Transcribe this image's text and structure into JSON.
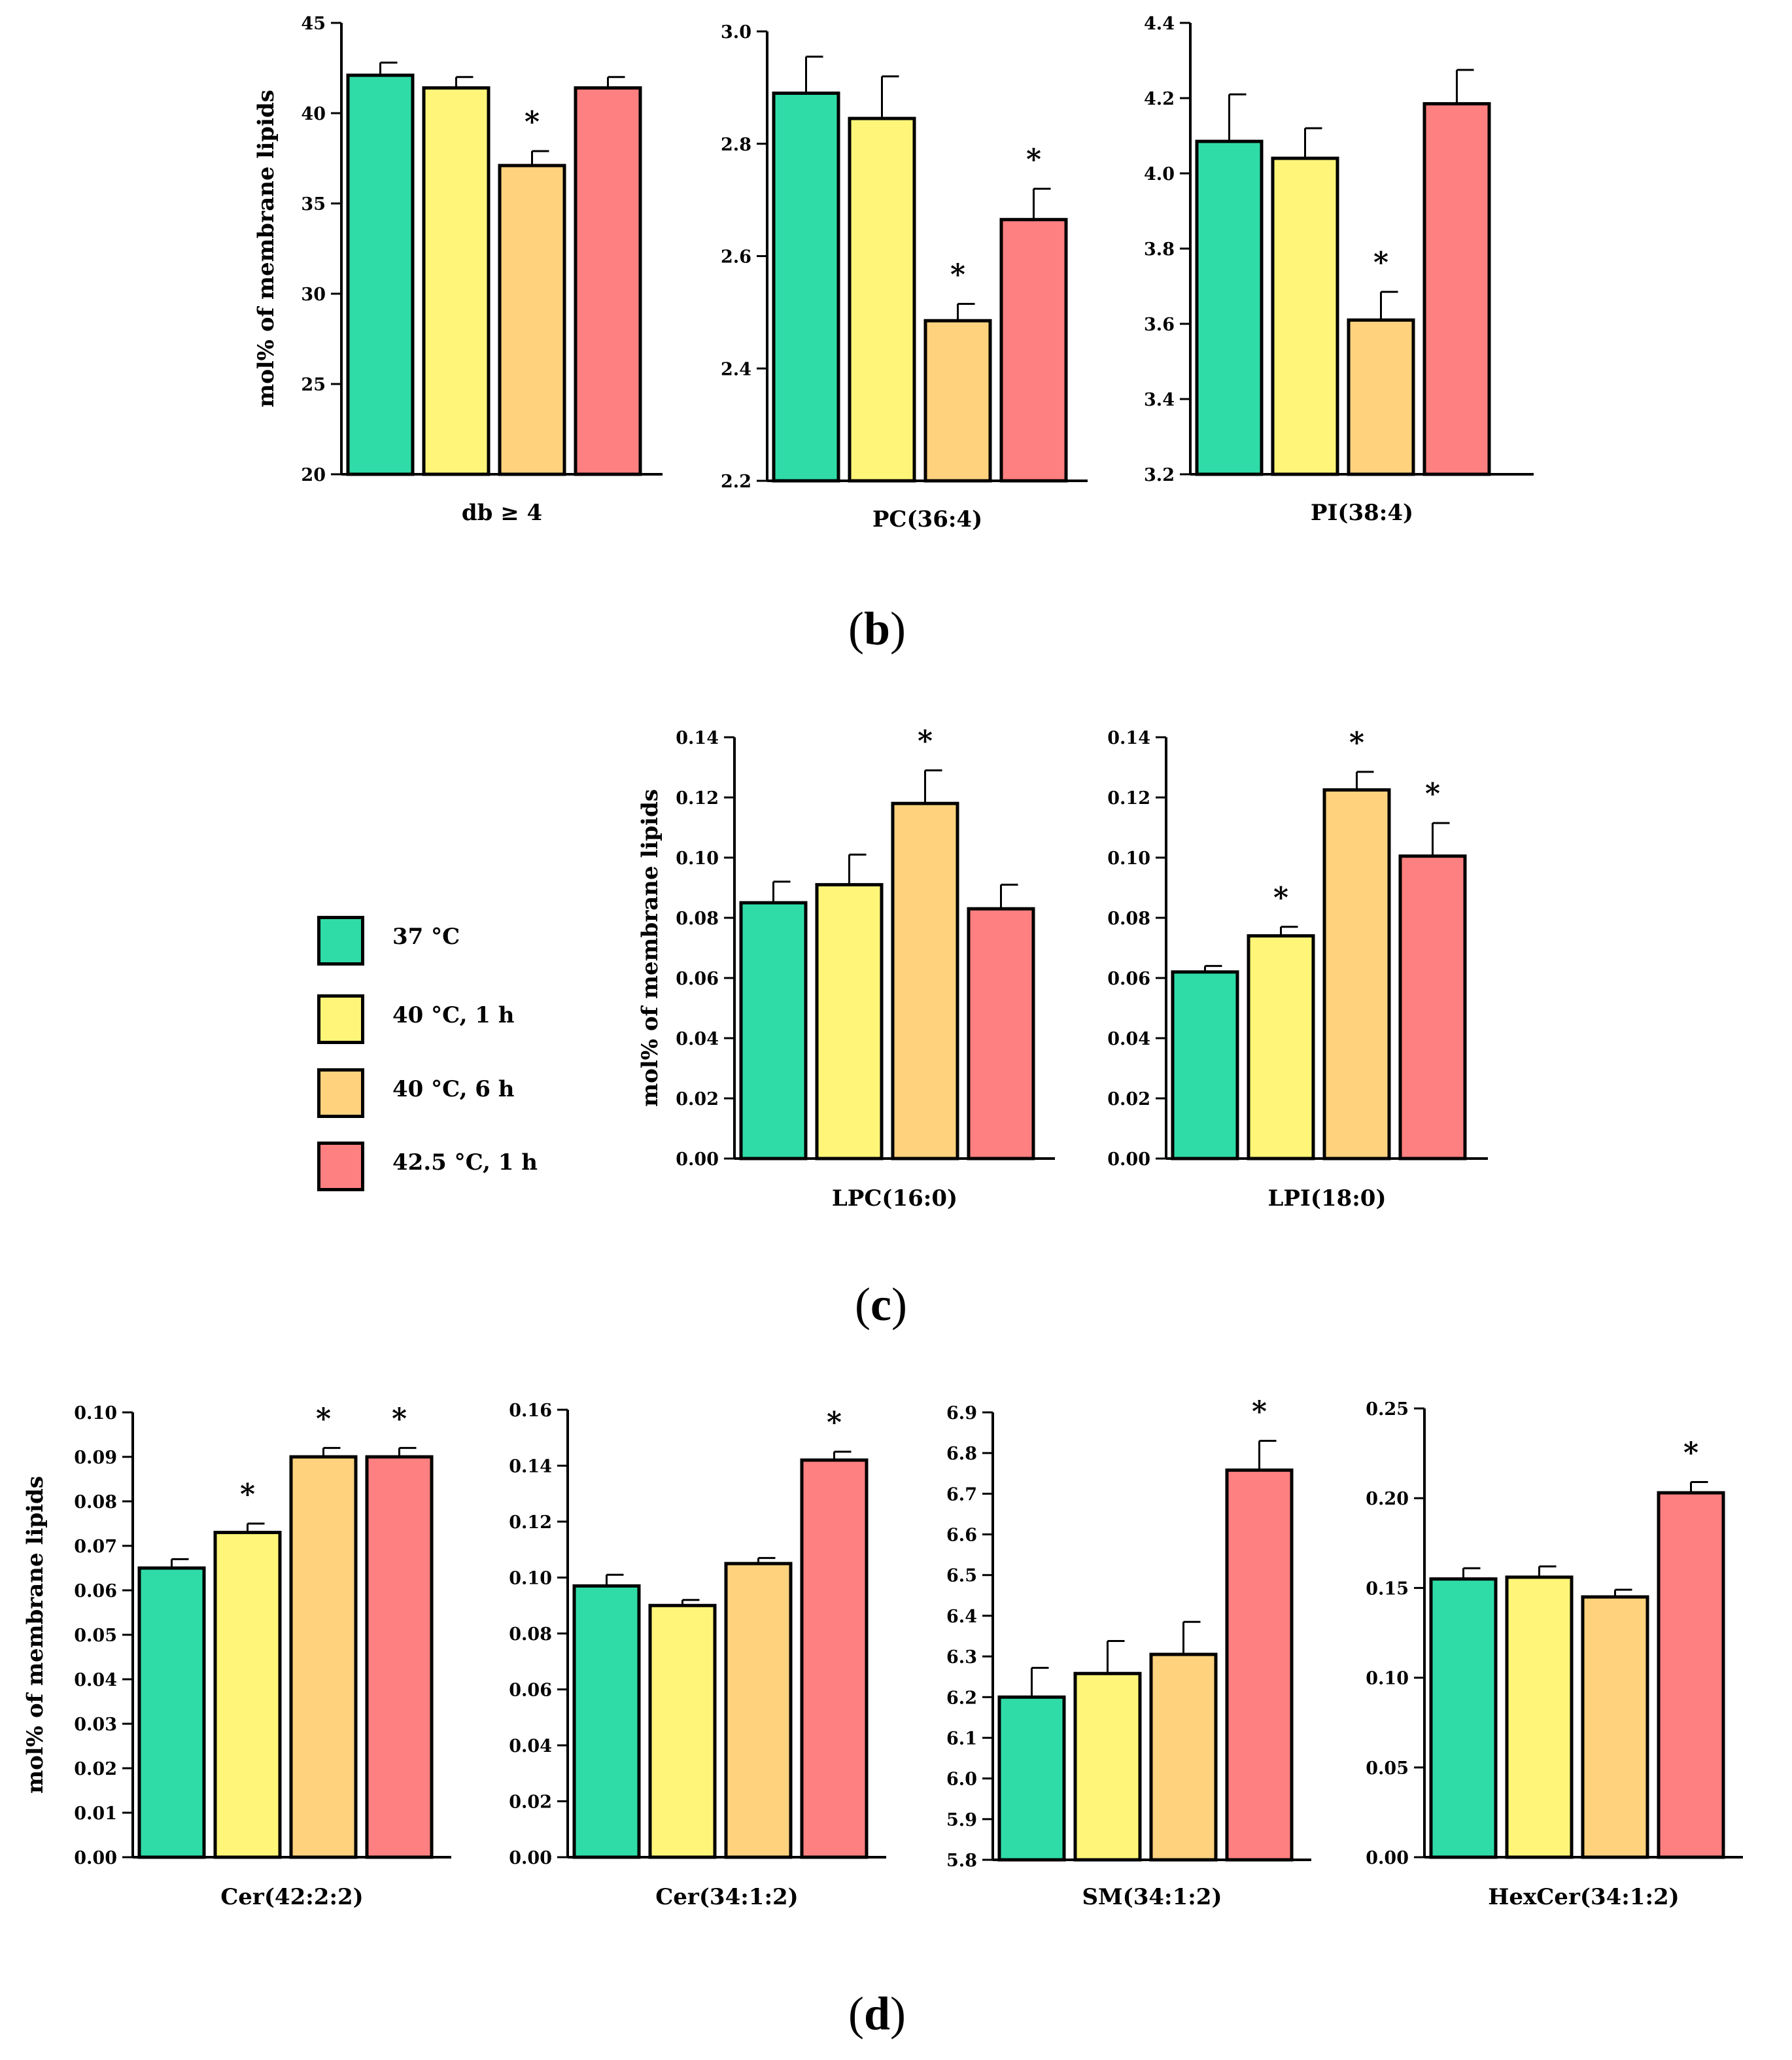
{
  "colors": {
    "c37": "#2fdca8",
    "c40_1h": "#fff679",
    "c40_6h": "#ffd27d",
    "c42_5_1h": "#ff8080"
  },
  "legend": [
    {
      "label": "37 °C",
      "color_key": "c37"
    },
    {
      "label": "40 °C, 1 h",
      "color_key": "c40_1h"
    },
    {
      "label": "40 °C, 6 h",
      "color_key": "c40_6h"
    },
    {
      "label": "42.5 °C, 1 h",
      "color_key": "c42_5_1h"
    }
  ],
  "panel_labels": {
    "b_open": "(",
    "b": "b",
    "b_close": ")",
    "c_open": "(",
    "c": "c",
    "c_close": ")",
    "d_open": "(",
    "d": "d",
    "d_close": ")"
  },
  "chart_data": [
    {
      "type": "bar",
      "panel": "b",
      "ylabel": "mol% of membrane lipids",
      "xlabel": "db ≥ 4",
      "ylim": [
        20,
        45
      ],
      "ticks": [
        20,
        25,
        30,
        35,
        40,
        45
      ],
      "tick_labels": [
        "20",
        "25",
        "30",
        "35",
        "40",
        "45"
      ],
      "values": [
        42.1,
        41.4,
        37.1,
        41.4
      ],
      "errors": [
        0.7,
        0.6,
        0.8,
        0.6
      ],
      "significant": [
        false,
        false,
        true,
        false
      ]
    },
    {
      "type": "bar",
      "panel": "b",
      "ylabel": "",
      "xlabel": "PC(36:4)",
      "ylim": [
        2.2,
        3.0
      ],
      "ticks": [
        2.2,
        2.4,
        2.6,
        2.8,
        3.0
      ],
      "tick_labels": [
        "2.2",
        "2.4",
        "2.6",
        "2.8",
        "3.0"
      ],
      "values": [
        2.89,
        2.845,
        2.485,
        2.665
      ],
      "errors": [
        0.065,
        0.075,
        0.03,
        0.055
      ],
      "significant": [
        false,
        false,
        true,
        true
      ]
    },
    {
      "type": "bar",
      "panel": "b",
      "ylabel": "",
      "xlabel": "PI(38:4)",
      "ylim": [
        3.2,
        4.4
      ],
      "ticks": [
        3.2,
        3.4,
        3.6,
        3.8,
        4.0,
        4.2,
        4.4
      ],
      "tick_labels": [
        "3.2",
        "3.4",
        "3.6",
        "3.8",
        "4.0",
        "4.2",
        "4.4"
      ],
      "values": [
        4.085,
        4.04,
        3.61,
        4.185
      ],
      "errors": [
        0.125,
        0.08,
        0.075,
        0.09
      ],
      "significant": [
        false,
        false,
        true,
        false
      ]
    },
    {
      "type": "bar",
      "panel": "c",
      "ylabel": "mol% of membrane lipids",
      "xlabel": "LPC(16:0)",
      "ylim": [
        0,
        0.14
      ],
      "ticks": [
        0,
        0.02,
        0.04,
        0.06,
        0.08,
        0.1,
        0.12,
        0.14
      ],
      "tick_labels": [
        "0.00",
        "0.02",
        "0.04",
        "0.06",
        "0.08",
        "0.10",
        "0.12",
        "0.14"
      ],
      "values": [
        0.085,
        0.091,
        0.118,
        0.083
      ],
      "errors": [
        0.007,
        0.01,
        0.011,
        0.008
      ],
      "significant": [
        false,
        false,
        true,
        false
      ]
    },
    {
      "type": "bar",
      "panel": "c",
      "ylabel": "",
      "xlabel": "LPI(18:0)",
      "ylim": [
        0,
        0.14
      ],
      "ticks": [
        0,
        0.02,
        0.04,
        0.06,
        0.08,
        0.1,
        0.12,
        0.14
      ],
      "tick_labels": [
        "0.00",
        "0.02",
        "0.04",
        "0.06",
        "0.08",
        "0.10",
        "0.12",
        "0.14"
      ],
      "values": [
        0.062,
        0.074,
        0.1225,
        0.1005
      ],
      "errors": [
        0.002,
        0.003,
        0.006,
        0.011
      ],
      "significant": [
        false,
        true,
        true,
        true
      ]
    },
    {
      "type": "bar",
      "panel": "d",
      "ylabel": "mol% of membrane lipids",
      "xlabel": "Cer(42:2:2)",
      "ylim": [
        0,
        0.1
      ],
      "ticks": [
        0,
        0.01,
        0.02,
        0.03,
        0.04,
        0.05,
        0.06,
        0.07,
        0.08,
        0.09,
        0.1
      ],
      "tick_labels": [
        "0.00",
        "0.01",
        "0.02",
        "0.03",
        "0.04",
        "0.05",
        "0.06",
        "0.07",
        "0.08",
        "0.09",
        "0.10"
      ],
      "values": [
        0.065,
        0.073,
        0.09,
        0.09
      ],
      "errors": [
        0.002,
        0.002,
        0.002,
        0.002
      ],
      "significant": [
        false,
        true,
        true,
        true
      ]
    },
    {
      "type": "bar",
      "panel": "d",
      "ylabel": "",
      "xlabel": "Cer(34:1:2)",
      "ylim": [
        0,
        0.16
      ],
      "ticks": [
        0,
        0.02,
        0.04,
        0.06,
        0.08,
        0.1,
        0.12,
        0.14,
        0.16
      ],
      "tick_labels": [
        "0.00",
        "0.02",
        "0.04",
        "0.06",
        "0.08",
        "0.10",
        "0.12",
        "0.14",
        "0.16"
      ],
      "values": [
        0.097,
        0.09,
        0.105,
        0.142
      ],
      "errors": [
        0.004,
        0.002,
        0.002,
        0.003
      ],
      "significant": [
        false,
        false,
        false,
        true
      ]
    },
    {
      "type": "bar",
      "panel": "d",
      "ylabel": "",
      "xlabel": "SM(34:1:2)",
      "ylim": [
        5.8,
        6.9
      ],
      "ticks": [
        5.8,
        5.9,
        6.0,
        6.1,
        6.2,
        6.3,
        6.4,
        6.5,
        6.6,
        6.7,
        6.8,
        6.9
      ],
      "tick_labels": [
        "5.8",
        "5.9",
        "6.0",
        "6.1",
        "6.2",
        "6.3",
        "6.4",
        "6.5",
        "6.6",
        "6.7",
        "6.8",
        "6.9"
      ],
      "values": [
        6.2,
        6.258,
        6.305,
        6.758
      ],
      "errors": [
        0.072,
        0.08,
        0.08,
        0.072
      ],
      "significant": [
        false,
        false,
        false,
        true
      ]
    },
    {
      "type": "bar",
      "panel": "d",
      "ylabel": "",
      "xlabel": "HexCer(34:1:2)",
      "ylim": [
        0,
        0.25
      ],
      "ticks": [
        0,
        0.05,
        0.1,
        0.15,
        0.2,
        0.25
      ],
      "tick_labels": [
        "0.00",
        "0.05",
        "0.10",
        "0.15",
        "0.20",
        "0.25"
      ],
      "values": [
        0.155,
        0.156,
        0.145,
        0.203
      ],
      "errors": [
        0.006,
        0.006,
        0.004,
        0.006
      ],
      "significant": [
        false,
        false,
        false,
        true
      ]
    }
  ]
}
